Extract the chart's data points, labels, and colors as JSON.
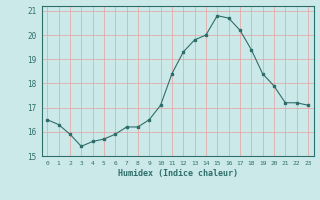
{
  "x": [
    0,
    1,
    2,
    3,
    4,
    5,
    6,
    7,
    8,
    9,
    10,
    11,
    12,
    13,
    14,
    15,
    16,
    17,
    18,
    19,
    20,
    21,
    22,
    23
  ],
  "y": [
    16.5,
    16.3,
    15.9,
    15.4,
    15.6,
    15.7,
    15.9,
    16.2,
    16.2,
    16.5,
    17.1,
    18.4,
    19.3,
    19.8,
    20.0,
    20.8,
    20.7,
    20.2,
    19.4,
    18.4,
    17.9,
    17.2,
    17.2,
    17.1
  ],
  "xlabel": "Humidex (Indice chaleur)",
  "xlim": [
    -0.5,
    23.5
  ],
  "ylim": [
    15,
    21.2
  ],
  "yticks": [
    15,
    16,
    17,
    18,
    19,
    20,
    21
  ],
  "xticks": [
    0,
    1,
    2,
    3,
    4,
    5,
    6,
    7,
    8,
    9,
    10,
    11,
    12,
    13,
    14,
    15,
    16,
    17,
    18,
    19,
    20,
    21,
    22,
    23
  ],
  "bg_color": "#cce9e9",
  "line_color": "#2e6e6a",
  "grid_color": "#e8a0a0",
  "label_color": "#2e6e6a"
}
